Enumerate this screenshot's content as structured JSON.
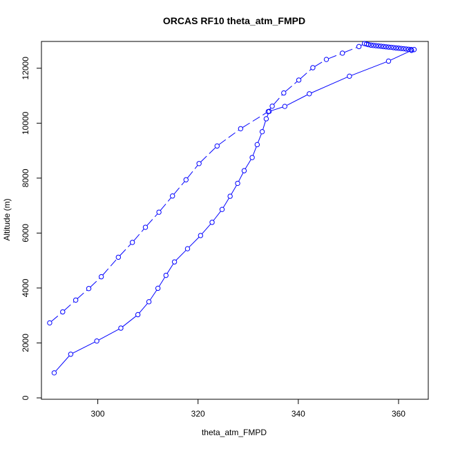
{
  "chart_data": {
    "type": "line",
    "title": "ORCAS RF10 theta_atm_FMPD",
    "xlabel": "theta_atm_FMPD",
    "ylabel": "Altitude (m)",
    "xlim": [
      290,
      364
    ],
    "ylim": [
      0,
      12900
    ],
    "xticks": [
      300,
      320,
      340,
      360
    ],
    "yticks": [
      0,
      2000,
      4000,
      6000,
      8000,
      10000,
      12000
    ],
    "grid": false,
    "legend": "none",
    "series_color": "#0000ff",
    "series": [
      {
        "line_style": "solid",
        "x": [
          291.3,
          294.6,
          299.8,
          304.6,
          308.0,
          310.2,
          312.0,
          313.6,
          315.3,
          317.9,
          320.5,
          322.8,
          324.8,
          326.4,
          327.9,
          329.2,
          330.8,
          331.8,
          332.8,
          333.6,
          334.2,
          337.3,
          342.2,
          350.2,
          358.0,
          362.6
        ],
        "y": [
          910,
          1590,
          2070,
          2540,
          3030,
          3500,
          3990,
          4460,
          4950,
          5430,
          5910,
          6390,
          6860,
          7340,
          7810,
          8270,
          8750,
          9220,
          9690,
          10160,
          10430,
          10610,
          11070,
          11710,
          12260,
          12650
        ]
      },
      {
        "line_style": "dashed",
        "x": [
          290.4,
          293.0,
          295.6,
          298.2,
          300.7,
          304.1,
          306.9,
          309.5,
          312.2,
          314.9,
          317.6,
          320.2,
          323.8,
          328.5,
          334.0,
          334.8,
          337.1,
          340.1,
          342.9,
          345.6,
          348.8,
          352.1,
          353.2,
          353.6,
          354.0,
          354.5,
          355.0,
          355.5,
          356.0,
          356.5,
          357.0,
          357.5,
          358.0,
          358.5,
          359.0,
          359.5,
          360.0,
          360.5,
          361.0,
          361.5,
          362.0,
          362.5,
          363.1
        ],
        "y": [
          2730,
          3130,
          3560,
          3980,
          4410,
          5120,
          5660,
          6210,
          6760,
          7350,
          7940,
          8530,
          9170,
          9800,
          10420,
          10620,
          11100,
          11570,
          12020,
          12320,
          12550,
          12790,
          12900,
          12880,
          12860,
          12840,
          12830,
          12820,
          12810,
          12800,
          12790,
          12780,
          12770,
          12760,
          12750,
          12740,
          12730,
          12720,
          12710,
          12700,
          12690,
          12680,
          12680
        ]
      }
    ]
  }
}
